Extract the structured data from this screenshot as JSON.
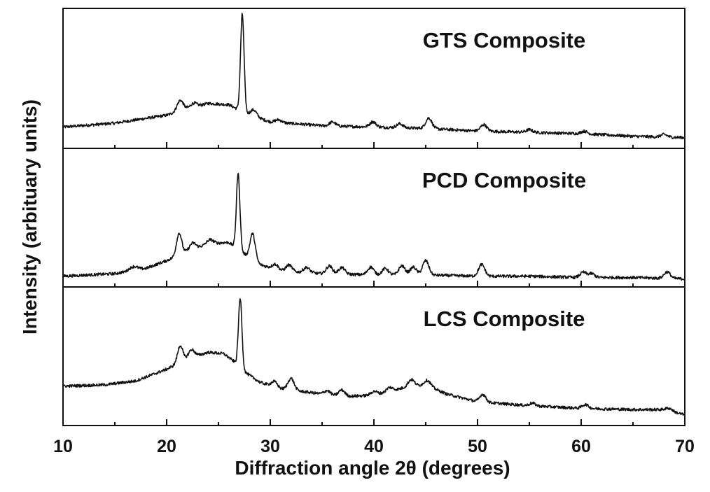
{
  "chart_data": {
    "type": "line",
    "xlabel": "Diffraction angle 2θ (degrees)",
    "ylabel": "Intensity (arbituary units)",
    "xlim": [
      10,
      70
    ],
    "x_ticks": [
      10,
      20,
      30,
      40,
      50,
      60,
      70
    ],
    "x_minor_step": 5,
    "y_ticks_shown": false,
    "grid": false,
    "stacked_panels": true,
    "series": [
      {
        "name": "GTS Composite",
        "baseline": [
          [
            10,
            0.13
          ],
          [
            15,
            0.16
          ],
          [
            20,
            0.22
          ],
          [
            22,
            0.27
          ],
          [
            24,
            0.31
          ],
          [
            26,
            0.3
          ],
          [
            28,
            0.22
          ],
          [
            30,
            0.17
          ],
          [
            35,
            0.14
          ],
          [
            40,
            0.13
          ],
          [
            45,
            0.12
          ],
          [
            50,
            0.1
          ],
          [
            55,
            0.09
          ],
          [
            60,
            0.08
          ],
          [
            65,
            0.06
          ],
          [
            70,
            0.05
          ]
        ],
        "peaks": [
          [
            21.3,
            0.08,
            0.3
          ],
          [
            22.6,
            0.03,
            0.3
          ],
          [
            27.3,
            0.74,
            0.17
          ],
          [
            28.4,
            0.05,
            0.3
          ],
          [
            30.8,
            0.02,
            0.3
          ],
          [
            36.0,
            0.03,
            0.3
          ],
          [
            39.9,
            0.04,
            0.3
          ],
          [
            42.5,
            0.03,
            0.3
          ],
          [
            45.3,
            0.08,
            0.3
          ],
          [
            50.6,
            0.05,
            0.3
          ],
          [
            55.0,
            0.02,
            0.3
          ],
          [
            60.3,
            0.02,
            0.3
          ],
          [
            68.0,
            0.02,
            0.3
          ]
        ]
      },
      {
        "name": "PCD Composite",
        "baseline": [
          [
            10,
            0.05
          ],
          [
            15,
            0.07
          ],
          [
            18,
            0.11
          ],
          [
            20,
            0.17
          ],
          [
            22,
            0.24
          ],
          [
            24,
            0.3
          ],
          [
            26,
            0.31
          ],
          [
            27.5,
            0.22
          ],
          [
            29,
            0.14
          ],
          [
            31,
            0.09
          ],
          [
            35,
            0.07
          ],
          [
            40,
            0.06
          ],
          [
            45,
            0.06
          ],
          [
            50,
            0.05
          ],
          [
            55,
            0.05
          ],
          [
            60,
            0.04
          ],
          [
            65,
            0.04
          ],
          [
            70,
            0.03
          ]
        ],
        "peaks": [
          [
            16.8,
            0.03,
            0.4
          ],
          [
            21.2,
            0.17,
            0.25
          ],
          [
            22.5,
            0.05,
            0.3
          ],
          [
            24.2,
            0.03,
            0.3
          ],
          [
            26.9,
            0.58,
            0.17
          ],
          [
            28.3,
            0.2,
            0.25
          ],
          [
            30.5,
            0.04,
            0.3
          ],
          [
            31.8,
            0.05,
            0.3
          ],
          [
            33.5,
            0.04,
            0.3
          ],
          [
            35.7,
            0.06,
            0.3
          ],
          [
            36.9,
            0.05,
            0.3
          ],
          [
            39.7,
            0.06,
            0.3
          ],
          [
            41.1,
            0.05,
            0.3
          ],
          [
            42.7,
            0.07,
            0.3
          ],
          [
            43.8,
            0.06,
            0.3
          ],
          [
            45.0,
            0.11,
            0.3
          ],
          [
            50.4,
            0.09,
            0.3
          ],
          [
            60.2,
            0.04,
            0.3
          ],
          [
            61.0,
            0.03,
            0.3
          ],
          [
            68.3,
            0.05,
            0.3
          ]
        ]
      },
      {
        "name": "LCS Composite",
        "baseline": [
          [
            10,
            0.27
          ],
          [
            14,
            0.28
          ],
          [
            17,
            0.31
          ],
          [
            20,
            0.4
          ],
          [
            22,
            0.48
          ],
          [
            24,
            0.53
          ],
          [
            25.5,
            0.52
          ],
          [
            26.5,
            0.46
          ],
          [
            27.5,
            0.38
          ],
          [
            29,
            0.3
          ],
          [
            31,
            0.25
          ],
          [
            34,
            0.22
          ],
          [
            37,
            0.19
          ],
          [
            40,
            0.2
          ],
          [
            42,
            0.24
          ],
          [
            43.5,
            0.27
          ],
          [
            45,
            0.28
          ],
          [
            47,
            0.21
          ],
          [
            50,
            0.15
          ],
          [
            55,
            0.12
          ],
          [
            60,
            0.1
          ],
          [
            65,
            0.09
          ],
          [
            68,
            0.09
          ],
          [
            70,
            0.05
          ]
        ],
        "peaks": [
          [
            21.3,
            0.13,
            0.25
          ],
          [
            22.4,
            0.06,
            0.3
          ],
          [
            27.1,
            0.53,
            0.17
          ],
          [
            30.4,
            0.04,
            0.3
          ],
          [
            32.0,
            0.09,
            0.3
          ],
          [
            35.5,
            0.03,
            0.3
          ],
          [
            36.9,
            0.05,
            0.3
          ],
          [
            40.0,
            0.03,
            0.3
          ],
          [
            41.5,
            0.03,
            0.3
          ],
          [
            43.6,
            0.05,
            0.3
          ],
          [
            45.2,
            0.04,
            0.3
          ],
          [
            50.5,
            0.06,
            0.3
          ],
          [
            55.3,
            0.02,
            0.3
          ],
          [
            60.4,
            0.03,
            0.3
          ],
          [
            68.5,
            0.02,
            0.3
          ]
        ]
      }
    ]
  }
}
